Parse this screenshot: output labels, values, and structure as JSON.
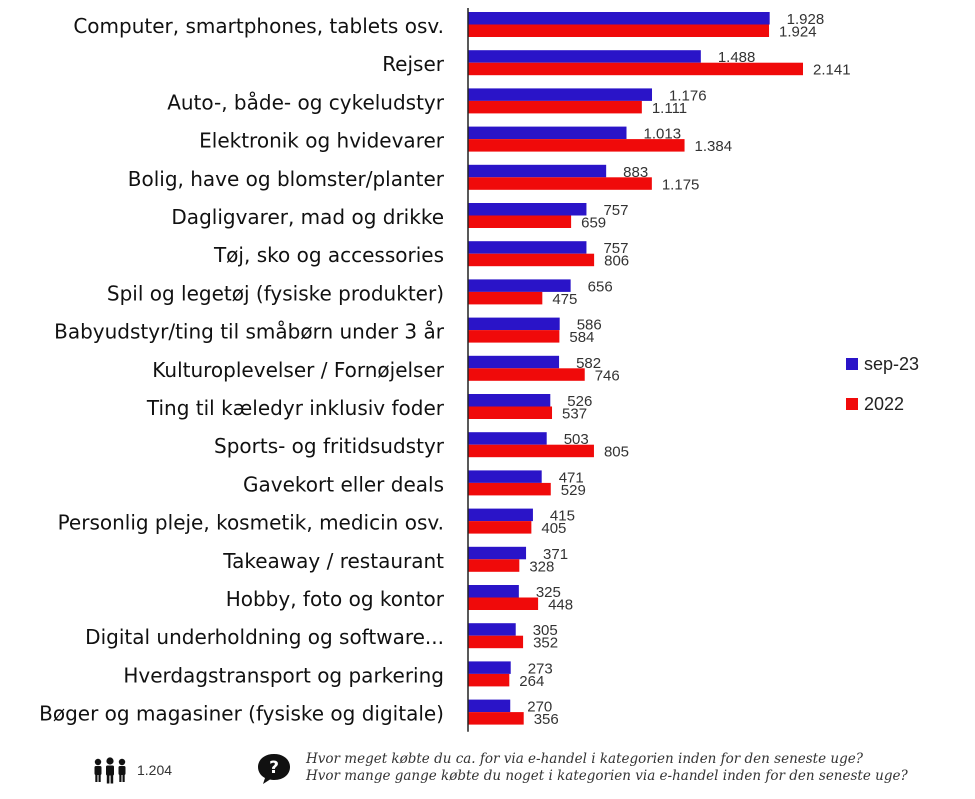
{
  "chart_data": {
    "type": "bar",
    "orientation": "horizontal",
    "categories": [
      "Computer, smartphones, tablets osv.",
      "Rejser",
      "Auto-, både- og cykeludstyr",
      "Elektronik og hvidevarer",
      "Bolig, have og blomster/planter",
      "Dagligvarer, mad og drikke",
      "Tøj, sko og accessories",
      "Spil og legetøj (fysiske produkter)",
      "Babyudstyr/ting til småbørn under 3 år",
      "Kulturoplevelser / Fornøjelser",
      "Ting til kæledyr inklusiv foder",
      "Sports- og fritidsudstyr",
      "Gavekort eller deals",
      "Personlig pleje, kosmetik, medicin osv.",
      "Takeaway / restaurant",
      "Hobby, foto og kontor",
      "Digital underholdning og software...",
      "Hverdagstransport og parkering",
      "Bøger og magasiner (fysiske og digitale)"
    ],
    "series": [
      {
        "name": "sep-23",
        "color": "#2A14C8",
        "values": [
          1928,
          1488,
          1176,
          1013,
          883,
          757,
          757,
          656,
          586,
          582,
          526,
          503,
          471,
          415,
          371,
          325,
          305,
          273,
          270
        ],
        "labels": [
          "1.928",
          "1.488",
          "1.176",
          "1.013",
          "883",
          "757",
          "757",
          "656",
          "586",
          "582",
          "526",
          "503",
          "471",
          "415",
          "371",
          "325",
          "305",
          "273",
          "270"
        ]
      },
      {
        "name": "2022",
        "color": "#F00A0A",
        "values": [
          1924,
          2141,
          1111,
          1384,
          1175,
          659,
          806,
          475,
          584,
          746,
          537,
          805,
          529,
          405,
          328,
          448,
          352,
          264,
          356
        ],
        "labels": [
          "1.924",
          "2.141",
          "1.111",
          "1.384",
          "1.175",
          "659",
          "806",
          "475",
          "584",
          "746",
          "537",
          "805",
          "529",
          "405",
          "328",
          "448",
          "352",
          "264",
          "356"
        ]
      }
    ],
    "xlim": [
      0,
      2141
    ],
    "grid": false,
    "legend_position": "right"
  },
  "footer": {
    "respondents_icon": "people-icon",
    "respondents": "1.204",
    "question_icon": "question-bubble-icon",
    "question_1": "Hvor meget købte du ca. for via e-handel i kategorien inden for den seneste uge?",
    "question_2": "Hvor mange gange købte du noget i kategorien via e-handel inden for den seneste uge?"
  }
}
